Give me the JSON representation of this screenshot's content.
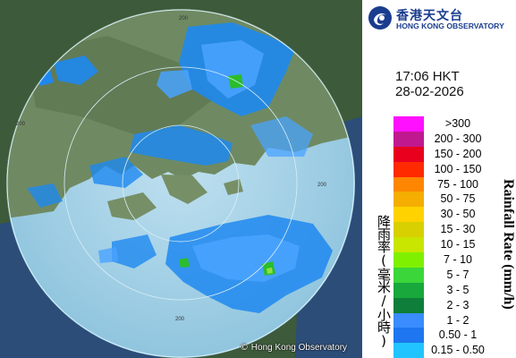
{
  "map": {
    "range_rings": [
      "200",
      "200",
      "200",
      "200"
    ],
    "copyright_symbol": "©",
    "copyright": "Hong Kong Observatory",
    "echo_colors": [
      "#1e88f0",
      "#4aa3ff",
      "#2bbd2b",
      "#8fe040"
    ]
  },
  "logo": {
    "name_zh": "香港天文台",
    "name_en": "HONG KONG OBSERVATORY",
    "emblem": "observatory-emblem-icon"
  },
  "time": "17:06 HKT",
  "date": "28-02-2026",
  "legend": {
    "title_zh": "降雨率(毫米/小時)",
    "title_en": "Rainfall Rate (mm/h)",
    "items": [
      {
        "label": ">300",
        "color": "#ff10ff"
      },
      {
        "label": "200 - 300",
        "color": "#c0198f"
      },
      {
        "label": "150 - 200",
        "color": "#e8001e"
      },
      {
        "label": "100 - 150",
        "color": "#ff2a00"
      },
      {
        "label": "75 - 100",
        "color": "#ff8600"
      },
      {
        "label": "50 - 75",
        "color": "#f4ad00"
      },
      {
        "label": "30 - 50",
        "color": "#ffd200"
      },
      {
        "label": "15 - 30",
        "color": "#d8d000"
      },
      {
        "label": "10 - 15",
        "color": "#c8e600"
      },
      {
        "label": "7 - 10",
        "color": "#7ff000"
      },
      {
        "label": "5 - 7",
        "color": "#3ad63a"
      },
      {
        "label": "3 - 5",
        "color": "#18a83c"
      },
      {
        "label": "2 - 3",
        "color": "#0e7e3a"
      },
      {
        "label": "1 - 2",
        "color": "#3a8cff"
      },
      {
        "label": "0.50 - 1",
        "color": "#1e76f0"
      },
      {
        "label": "0.15 - 0.50",
        "color": "#22c4ff"
      }
    ]
  }
}
